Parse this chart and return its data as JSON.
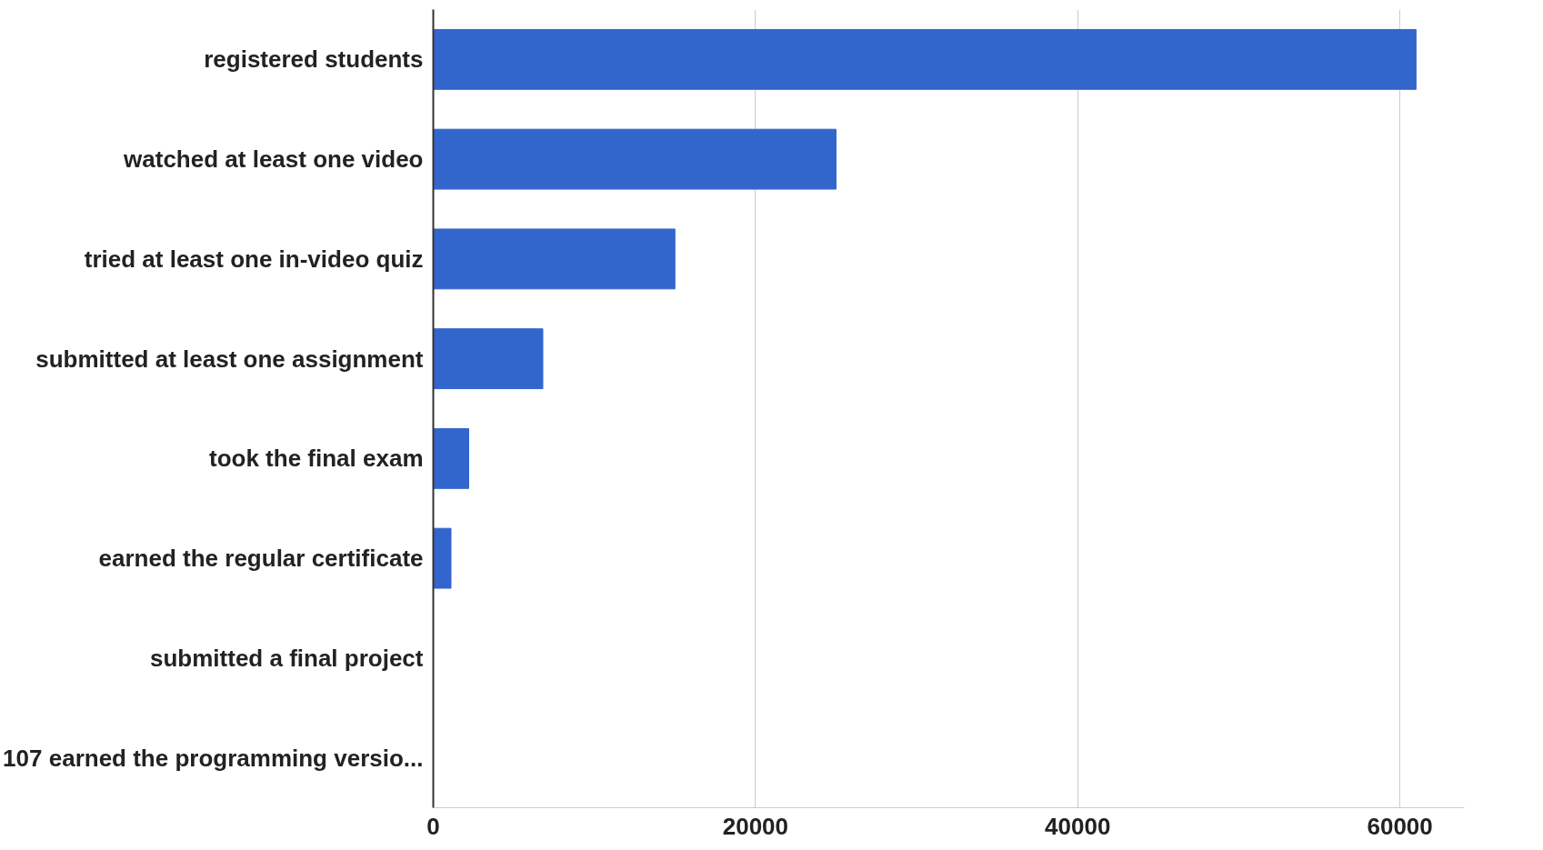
{
  "chart_data": {
    "type": "bar",
    "orientation": "horizontal",
    "categories": [
      "registered students",
      "watched at least one video",
      "tried at least one in-video quiz",
      "submitted at least one assignment",
      "took the final exam",
      "earned the regular certificate",
      "submitted a final project",
      "107 earned the programming versio..."
    ],
    "values": [
      61000,
      25000,
      15000,
      6800,
      2200,
      1100,
      null,
      null
    ],
    "color": "#3366cc",
    "xlim": [
      0,
      64000
    ],
    "xticks": [
      0,
      20000,
      40000,
      60000
    ],
    "grid": "x"
  }
}
